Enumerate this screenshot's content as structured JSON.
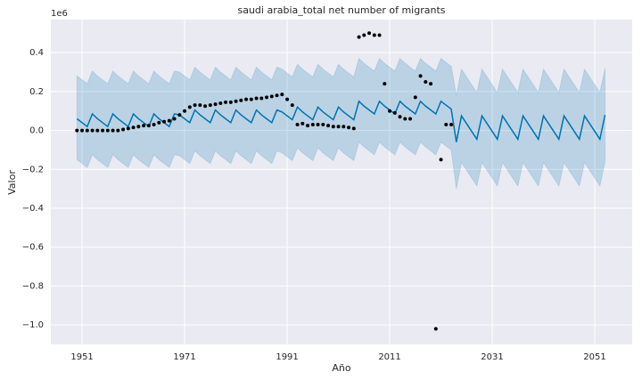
{
  "chart_data": {
    "type": "forecast",
    "title": "saudi arabia_total net number of migrants",
    "offset_label": "1e6",
    "xlabel": "Año",
    "ylabel": "Valor",
    "xlim": [
      1944.9,
      2058.3
    ],
    "ylim": [
      -1.1,
      0.57
    ],
    "xticks": [
      1951,
      1971,
      1991,
      2011,
      2031,
      2051
    ],
    "yticks": [
      {
        "value": -1.0,
        "label": "−1.0"
      },
      {
        "value": -0.8,
        "label": "−0.8"
      },
      {
        "value": -0.6,
        "label": "−0.6"
      },
      {
        "value": -0.4,
        "label": "−0.4"
      },
      {
        "value": -0.2,
        "label": "−0.2"
      },
      {
        "value": 0,
        "label": "0.0"
      },
      0.2,
      0.4
    ],
    "grid": true,
    "forecast": {
      "color": "#0072B2",
      "x": [
        1950,
        1951,
        1952,
        1953,
        1954,
        1955,
        1956,
        1957,
        1958,
        1959,
        1960,
        1961,
        1962,
        1963,
        1964,
        1965,
        1966,
        1967,
        1968,
        1969,
        1970,
        1971,
        1972,
        1973,
        1974,
        1975,
        1976,
        1977,
        1978,
        1979,
        1980,
        1981,
        1982,
        1983,
        1984,
        1985,
        1986,
        1987,
        1988,
        1989,
        1990,
        1991,
        1992,
        1993,
        1994,
        1995,
        1996,
        1997,
        1998,
        1999,
        2000,
        2001,
        2002,
        2003,
        2004,
        2005,
        2006,
        2007,
        2008,
        2009,
        2010,
        2011,
        2012,
        2013,
        2014,
        2015,
        2016,
        2017,
        2018,
        2019,
        2020,
        2021,
        2022,
        2023,
        2024,
        2025,
        2026,
        2027,
        2028,
        2029,
        2030,
        2031,
        2032,
        2033,
        2034,
        2035,
        2036,
        2037,
        2038,
        2039,
        2040,
        2041,
        2042,
        2043,
        2044,
        2045,
        2046,
        2047,
        2048,
        2049,
        2050,
        2051,
        2052,
        2053
      ],
      "yhat": [
        0.06,
        0.04,
        0.02,
        0.085,
        0.06,
        0.04,
        0.02,
        0.085,
        0.06,
        0.04,
        0.02,
        0.085,
        0.06,
        0.04,
        0.02,
        0.085,
        0.06,
        0.04,
        0.02,
        0.085,
        0.08,
        0.06,
        0.04,
        0.105,
        0.08,
        0.06,
        0.04,
        0.105,
        0.08,
        0.06,
        0.04,
        0.105,
        0.08,
        0.06,
        0.04,
        0.105,
        0.08,
        0.06,
        0.04,
        0.105,
        0.095,
        0.075,
        0.055,
        0.12,
        0.095,
        0.075,
        0.055,
        0.12,
        0.095,
        0.075,
        0.055,
        0.12,
        0.095,
        0.075,
        0.055,
        0.15,
        0.125,
        0.105,
        0.085,
        0.15,
        0.125,
        0.105,
        0.085,
        0.15,
        0.125,
        0.105,
        0.085,
        0.15,
        0.125,
        0.105,
        0.085,
        0.15,
        0.13,
        0.11,
        -0.06,
        0.075,
        0.035,
        -0.005,
        -0.045,
        0.075,
        0.035,
        -0.005,
        -0.045,
        0.075,
        0.035,
        -0.005,
        -0.045,
        0.075,
        0.035,
        -0.005,
        -0.045,
        0.075,
        0.035,
        -0.005,
        -0.045,
        0.075,
        0.035,
        -0.005,
        -0.045,
        0.075,
        0.035,
        -0.005,
        -0.045,
        0.08
      ],
      "upper": [
        0.28,
        0.26,
        0.24,
        0.305,
        0.28,
        0.26,
        0.24,
        0.305,
        0.28,
        0.26,
        0.24,
        0.305,
        0.28,
        0.26,
        0.24,
        0.305,
        0.28,
        0.26,
        0.24,
        0.305,
        0.3,
        0.28,
        0.26,
        0.325,
        0.3,
        0.28,
        0.26,
        0.325,
        0.3,
        0.28,
        0.26,
        0.325,
        0.3,
        0.28,
        0.26,
        0.325,
        0.3,
        0.28,
        0.26,
        0.325,
        0.315,
        0.295,
        0.275,
        0.34,
        0.315,
        0.295,
        0.275,
        0.34,
        0.315,
        0.295,
        0.275,
        0.34,
        0.315,
        0.295,
        0.275,
        0.37,
        0.345,
        0.325,
        0.305,
        0.37,
        0.345,
        0.325,
        0.305,
        0.37,
        0.345,
        0.325,
        0.305,
        0.37,
        0.345,
        0.325,
        0.305,
        0.37,
        0.35,
        0.33,
        0.18,
        0.315,
        0.275,
        0.235,
        0.195,
        0.315,
        0.275,
        0.235,
        0.195,
        0.315,
        0.275,
        0.235,
        0.195,
        0.315,
        0.275,
        0.235,
        0.195,
        0.315,
        0.275,
        0.235,
        0.195,
        0.315,
        0.275,
        0.235,
        0.195,
        0.315,
        0.275,
        0.235,
        0.195,
        0.32
      ],
      "lower": [
        -0.15,
        -0.17,
        -0.19,
        -0.125,
        -0.15,
        -0.17,
        -0.19,
        -0.125,
        -0.15,
        -0.17,
        -0.19,
        -0.125,
        -0.15,
        -0.17,
        -0.19,
        -0.125,
        -0.15,
        -0.17,
        -0.19,
        -0.125,
        -0.13,
        -0.15,
        -0.17,
        -0.105,
        -0.13,
        -0.15,
        -0.17,
        -0.105,
        -0.13,
        -0.15,
        -0.17,
        -0.105,
        -0.13,
        -0.15,
        -0.17,
        -0.105,
        -0.13,
        -0.15,
        -0.17,
        -0.105,
        -0.115,
        -0.135,
        -0.155,
        -0.09,
        -0.115,
        -0.135,
        -0.155,
        -0.09,
        -0.115,
        -0.135,
        -0.155,
        -0.09,
        -0.115,
        -0.135,
        -0.155,
        -0.06,
        -0.085,
        -0.105,
        -0.125,
        -0.06,
        -0.085,
        -0.105,
        -0.125,
        -0.06,
        -0.085,
        -0.105,
        -0.125,
        -0.06,
        -0.085,
        -0.105,
        -0.125,
        -0.06,
        -0.08,
        -0.1,
        -0.3,
        -0.165,
        -0.205,
        -0.245,
        -0.285,
        -0.165,
        -0.205,
        -0.245,
        -0.285,
        -0.165,
        -0.205,
        -0.245,
        -0.285,
        -0.165,
        -0.205,
        -0.245,
        -0.285,
        -0.165,
        -0.205,
        -0.245,
        -0.285,
        -0.165,
        -0.205,
        -0.245,
        -0.285,
        -0.165,
        -0.205,
        -0.245,
        -0.285,
        -0.16
      ]
    },
    "actual": {
      "color": "#000000",
      "x": [
        1950,
        1951,
        1952,
        1953,
        1954,
        1955,
        1956,
        1957,
        1958,
        1959,
        1960,
        1961,
        1962,
        1963,
        1964,
        1965,
        1966,
        1967,
        1968,
        1969,
        1970,
        1971,
        1972,
        1973,
        1974,
        1975,
        1976,
        1977,
        1978,
        1979,
        1980,
        1981,
        1982,
        1983,
        1984,
        1985,
        1986,
        1987,
        1988,
        1989,
        1990,
        1991,
        1992,
        1993,
        1994,
        1995,
        1996,
        1997,
        1998,
        1999,
        2000,
        2001,
        2002,
        2003,
        2004,
        2005,
        2006,
        2007,
        2008,
        2009,
        2010,
        2011,
        2012,
        2013,
        2014,
        2015,
        2016,
        2017,
        2018,
        2019,
        2020,
        2021,
        2022,
        2023
      ],
      "values": [
        0,
        0,
        0,
        0,
        0,
        0,
        0,
        0,
        0,
        0.005,
        0.01,
        0.015,
        0.02,
        0.025,
        0.025,
        0.03,
        0.04,
        0.045,
        0.05,
        0.06,
        0.08,
        0.1,
        0.12,
        0.13,
        0.13,
        0.125,
        0.13,
        0.135,
        0.14,
        0.145,
        0.145,
        0.15,
        0.155,
        0.16,
        0.16,
        0.165,
        0.165,
        0.17,
        0.175,
        0.18,
        0.185,
        0.16,
        0.13,
        0.03,
        0.035,
        0.025,
        0.03,
        0.03,
        0.03,
        0.025,
        0.02,
        0.02,
        0.02,
        0.015,
        0.01,
        0.48,
        0.49,
        0.5,
        0.49,
        0.49,
        0.24,
        0.1,
        0.09,
        0.07,
        0.06,
        0.06,
        0.17,
        0.28,
        0.25,
        0.24,
        -1.02,
        -0.15,
        0.03,
        0.03
      ]
    }
  }
}
